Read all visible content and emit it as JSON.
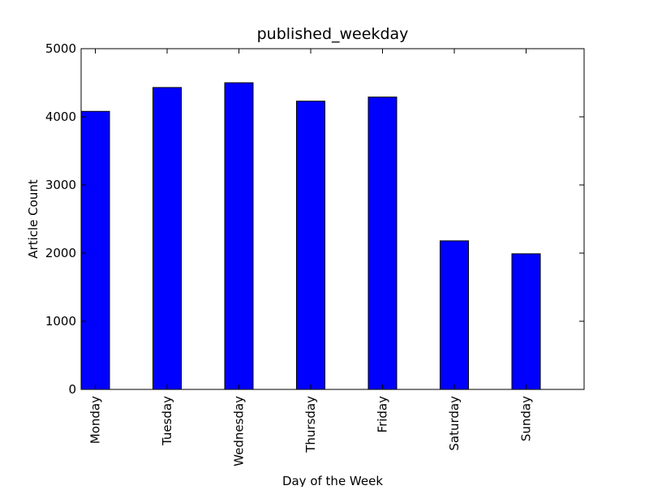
{
  "chart_data": {
    "type": "bar",
    "title": "published_weekday",
    "xlabel": "Day of the Week",
    "ylabel": "Article Count",
    "categories": [
      "Monday",
      "Tuesday",
      "Wednesday",
      "Thursday",
      "Friday",
      "Saturday",
      "Sunday"
    ],
    "values": [
      4080,
      4430,
      4500,
      4230,
      4290,
      2180,
      1990
    ],
    "ylim": [
      0,
      5000
    ],
    "yticks": [
      "0",
      "1000",
      "2000",
      "3000",
      "4000",
      "5000"
    ],
    "grid": false,
    "legend": "none",
    "bar_color": "#0000ff",
    "edge_color": "#000000"
  }
}
